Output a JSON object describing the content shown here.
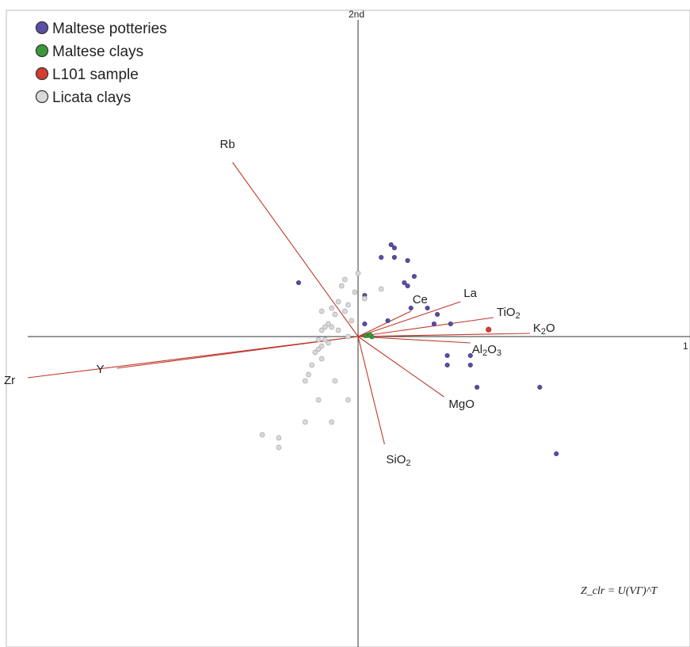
{
  "chart_data": {
    "type": "scatter",
    "subtype": "biplot",
    "axes": {
      "x_end_label": "1",
      "y_end_label": "2nd",
      "xlim": [
        -1.0,
        1.0
      ],
      "ylim": [
        -1.0,
        1.0
      ],
      "grid": false
    },
    "formula": "Z_clr = U(VΓ)^T",
    "legend": {
      "placement": "top-left",
      "entries": [
        {
          "name": "Maltese potteries",
          "color": "#5a4ea6"
        },
        {
          "name": "Maltese clays",
          "color": "#3a9a3a"
        },
        {
          "name": "L101 sample",
          "color": "#d63b2f"
        },
        {
          "name": "Licata clays",
          "color": "#d9d9d9"
        }
      ]
    },
    "vector_color": "#c0392b",
    "vectors": [
      {
        "label": "Rb",
        "x": -0.38,
        "y": 0.55
      },
      {
        "label": "Zr",
        "x": -1.0,
        "y": -0.13
      },
      {
        "label": "Y",
        "x": -0.73,
        "y": -0.1
      },
      {
        "label": "Ce",
        "x": 0.16,
        "y": 0.08
      },
      {
        "label": "La",
        "x": 0.31,
        "y": 0.11
      },
      {
        "label": "TiO2",
        "x": 0.41,
        "y": 0.06
      },
      {
        "label": "K2O",
        "x": 0.52,
        "y": 0.01
      },
      {
        "label": "Al2O3",
        "x": 0.34,
        "y": -0.02
      },
      {
        "label": "MgO",
        "x": 0.26,
        "y": -0.19
      },
      {
        "label": "SiO2",
        "x": 0.08,
        "y": -0.34
      }
    ],
    "series": [
      {
        "name": "Maltese potteries",
        "points": [
          [
            0.1,
            0.29
          ],
          [
            0.11,
            0.28
          ],
          [
            0.07,
            0.25
          ],
          [
            0.11,
            0.25
          ],
          [
            0.15,
            0.24
          ],
          [
            0.17,
            0.19
          ],
          [
            0.14,
            0.17
          ],
          [
            0.15,
            0.16
          ],
          [
            0.02,
            0.13
          ],
          [
            0.16,
            0.09
          ],
          [
            0.21,
            0.09
          ],
          [
            0.24,
            0.07
          ],
          [
            0.09,
            0.05
          ],
          [
            0.02,
            0.04
          ],
          [
            0.23,
            0.04
          ],
          [
            0.28,
            0.04
          ],
          [
            0.27,
            -0.06
          ],
          [
            0.34,
            -0.06
          ],
          [
            0.27,
            -0.09
          ],
          [
            0.34,
            -0.09
          ],
          [
            0.36,
            -0.16
          ],
          [
            0.55,
            -0.16
          ],
          [
            0.6,
            -0.37
          ],
          [
            -0.18,
            0.17
          ]
        ]
      },
      {
        "name": "Maltese clays",
        "points": [
          [
            0.03,
            0.003
          ],
          [
            0.042,
            -0.001
          ],
          [
            0.036,
            0.006
          ],
          [
            0.022,
            0.002
          ]
        ]
      },
      {
        "name": "L101 sample",
        "points": [
          [
            0.395,
            0.022
          ]
        ]
      },
      {
        "name": "Licata clays",
        "points": [
          [
            0.0,
            0.2
          ],
          [
            -0.04,
            0.18
          ],
          [
            0.07,
            0.15
          ],
          [
            -0.05,
            0.16
          ],
          [
            -0.01,
            0.14
          ],
          [
            0.02,
            0.12
          ],
          [
            -0.03,
            0.1
          ],
          [
            -0.06,
            0.11
          ],
          [
            -0.08,
            0.09
          ],
          [
            -0.11,
            0.08
          ],
          [
            -0.07,
            0.07
          ],
          [
            -0.04,
            0.08
          ],
          [
            -0.02,
            0.05
          ],
          [
            -0.09,
            0.04
          ],
          [
            -0.1,
            0.03
          ],
          [
            -0.08,
            0.03
          ],
          [
            -0.06,
            0.02
          ],
          [
            -0.11,
            0.02
          ],
          [
            -0.03,
            0.0
          ],
          [
            -0.1,
            -0.01
          ],
          [
            -0.12,
            -0.01
          ],
          [
            -0.09,
            -0.02
          ],
          [
            -0.11,
            -0.03
          ],
          [
            -0.12,
            -0.04
          ],
          [
            -0.13,
            -0.05
          ],
          [
            -0.11,
            -0.07
          ],
          [
            -0.14,
            -0.09
          ],
          [
            -0.15,
            -0.12
          ],
          [
            -0.16,
            -0.14
          ],
          [
            -0.07,
            -0.14
          ],
          [
            -0.12,
            -0.2
          ],
          [
            -0.03,
            -0.2
          ],
          [
            -0.16,
            -0.27
          ],
          [
            -0.08,
            -0.27
          ],
          [
            -0.29,
            -0.31
          ],
          [
            -0.24,
            -0.32
          ],
          [
            -0.24,
            -0.35
          ]
        ]
      }
    ]
  }
}
